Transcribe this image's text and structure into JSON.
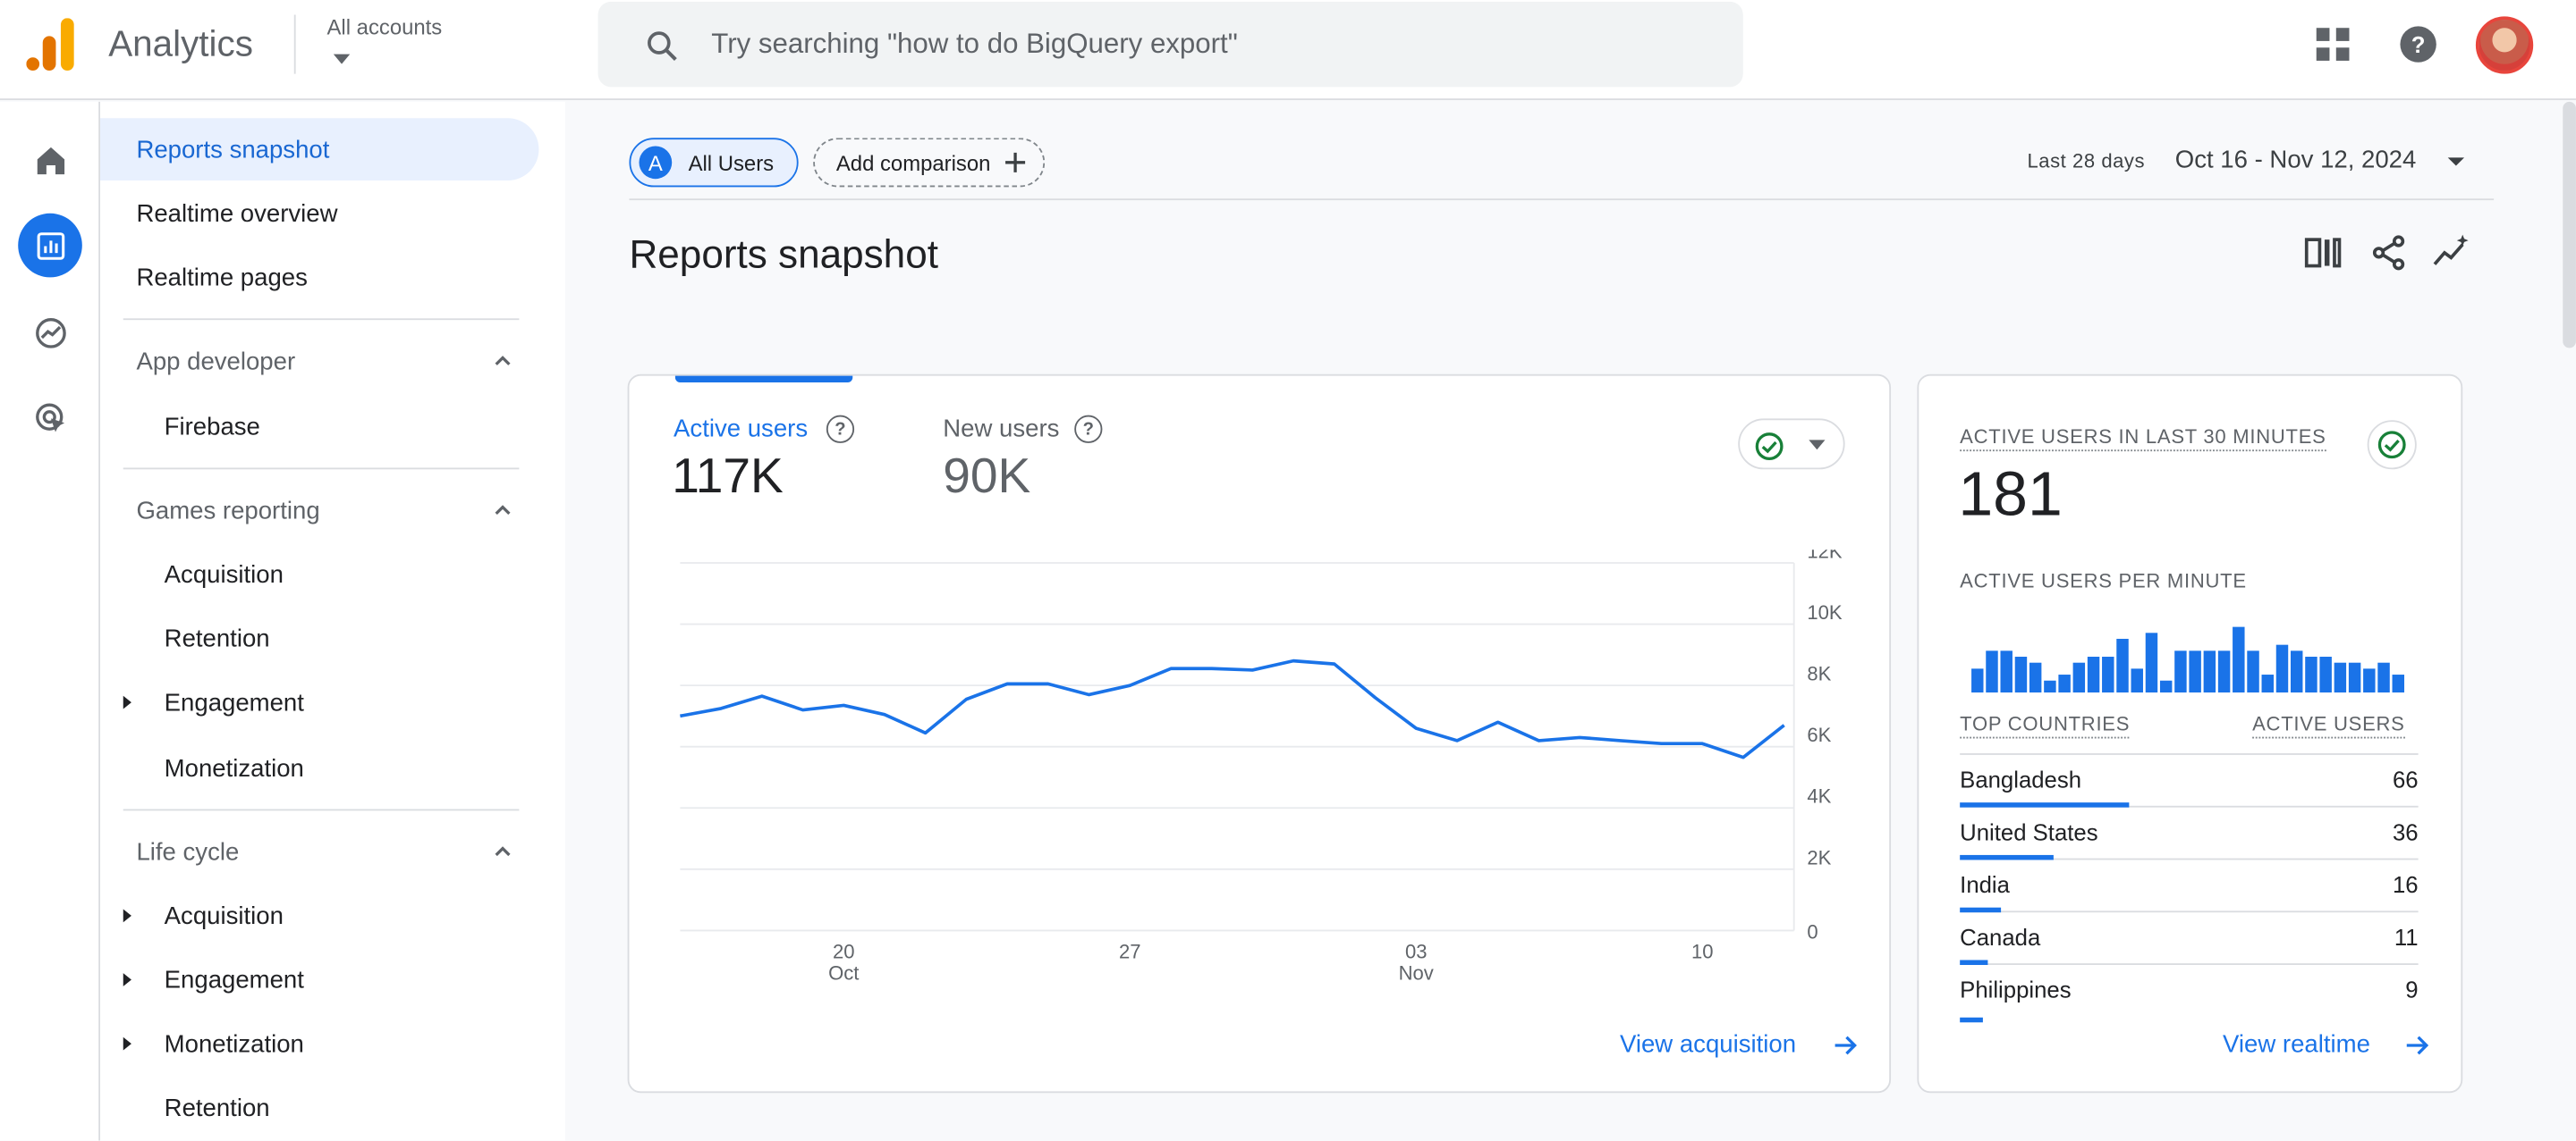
{
  "header": {
    "app_name": "Analytics",
    "account_label": "All accounts",
    "search_placeholder": "Try searching \"how to do BigQuery export\""
  },
  "sidebar": {
    "items_top": [
      "Reports snapshot",
      "Realtime overview",
      "Realtime pages"
    ],
    "app_developer": {
      "title": "App developer",
      "items": [
        "Firebase"
      ]
    },
    "games_reporting": {
      "title": "Games reporting",
      "items": [
        "Acquisition",
        "Retention",
        "Engagement",
        "Monetization"
      ]
    },
    "life_cycle": {
      "title": "Life cycle",
      "items": [
        "Acquisition",
        "Engagement",
        "Monetization",
        "Retention"
      ]
    }
  },
  "toolbar": {
    "segment_badge": "A",
    "segment_label": "All Users",
    "add_comparison": "Add comparison",
    "date_range_label": "Last 28 days",
    "date_range_value": "Oct 16 - Nov 12, 2024"
  },
  "page_title": "Reports snapshot",
  "overview_card": {
    "metrics": [
      {
        "label": "Active users",
        "value": "117K"
      },
      {
        "label": "New users",
        "value": "90K"
      }
    ],
    "view_link": "View acquisition"
  },
  "realtime_card": {
    "title": "ACTIVE USERS IN LAST 30 MINUTES",
    "value": "181",
    "per_minute_label": "ACTIVE USERS PER MINUTE",
    "countries_header": "TOP COUNTRIES",
    "users_header": "ACTIVE USERS",
    "countries": [
      {
        "name": "Bangladesh",
        "value": "66"
      },
      {
        "name": "United States",
        "value": "36"
      },
      {
        "name": "India",
        "value": "16"
      },
      {
        "name": "Canada",
        "value": "11"
      },
      {
        "name": "Philippines",
        "value": "9"
      }
    ],
    "view_link": "View realtime"
  },
  "chart_data": [
    {
      "type": "line",
      "x_ticks": [
        {
          "day": "20",
          "month": "Oct"
        },
        {
          "day": "27",
          "month": ""
        },
        {
          "day": "03",
          "month": "Nov"
        },
        {
          "day": "10",
          "month": ""
        }
      ],
      "y_ticks": [
        "12K",
        "10K",
        "8K",
        "6K",
        "4K",
        "2K",
        "0"
      ],
      "ylim": [
        0,
        12000
      ],
      "series": [
        {
          "values": [
            7000,
            7250,
            7650,
            7200,
            7350,
            7050,
            6450,
            7550,
            8050,
            8050,
            7700,
            8000,
            8550,
            8550,
            8500,
            8800,
            8700,
            7600,
            6600,
            6200,
            6800,
            6200,
            6300,
            6200,
            6100,
            6100,
            5650,
            6700
          ]
        }
      ]
    },
    {
      "type": "bar",
      "values": [
        4,
        7,
        7,
        6,
        5,
        2,
        3,
        5,
        6,
        6,
        9,
        4,
        10,
        2,
        7,
        7,
        7,
        7,
        11,
        7,
        3,
        8,
        7,
        6,
        6,
        5,
        5,
        4,
        5,
        3
      ],
      "ylim": [
        0,
        11
      ]
    }
  ]
}
